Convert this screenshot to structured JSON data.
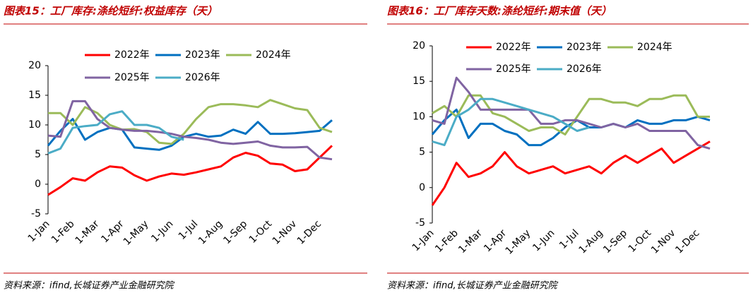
{
  "chart_data": [
    {
      "type": "line",
      "title": "图表15：工厂库存:涤纶短纤:权益库存（天）",
      "source": "资料来源：ifind,长城证券产业金融研究院",
      "categories": [
        "1-Jan",
        null,
        "1-Feb",
        null,
        "1-Mar",
        null,
        "1-Apr",
        null,
        "1-May",
        null,
        "1-Jun",
        null,
        "1-Jul",
        null,
        "1-Aug",
        null,
        "1-Sep",
        null,
        "1-Oct",
        null,
        "1-Nov",
        null,
        "1-Dec",
        null
      ],
      "ylim": [
        -5,
        20
      ],
      "yticks": [
        -5,
        0,
        5,
        10,
        15,
        20
      ],
      "series": [
        {
          "name": "2022年",
          "color": "#ff0000",
          "values": [
            -1.8,
            -0.5,
            1.0,
            0.6,
            2.0,
            3.0,
            2.8,
            1.5,
            0.6,
            1.3,
            1.8,
            1.6,
            2.0,
            2.5,
            3.0,
            4.5,
            5.3,
            4.8,
            3.5,
            3.3,
            2.2,
            2.5,
            4.5,
            6.5
          ]
        },
        {
          "name": "2023年",
          "color": "#0070c0",
          "values": [
            6.5,
            9.0,
            11.0,
            7.5,
            8.8,
            9.5,
            9.2,
            6.2,
            6.0,
            5.8,
            6.5,
            8.0,
            8.5,
            8.0,
            8.2,
            9.2,
            8.5,
            10.5,
            8.5,
            8.5,
            8.6,
            8.8,
            9.0,
            10.8
          ]
        },
        {
          "name": "2024年",
          "color": "#9bbb59",
          "values": [
            12.0,
            12.0,
            10.0,
            13.0,
            12.0,
            10.0,
            9.2,
            9.3,
            8.8,
            7.0,
            6.8,
            8.5,
            11.0,
            13.0,
            13.5,
            13.5,
            13.3,
            13.0,
            14.2,
            13.5,
            12.8,
            12.5,
            9.5,
            8.8
          ]
        },
        {
          "name": "2025年",
          "color": "#8064a2",
          "values": [
            8.2,
            8.0,
            14.0,
            14.0,
            11.0,
            9.5,
            9.2,
            9.0,
            9.0,
            8.8,
            8.5,
            8.0,
            7.8,
            7.5,
            7.0,
            6.8,
            7.0,
            7.2,
            6.5,
            6.2,
            6.2,
            6.3,
            4.5,
            4.2
          ]
        },
        {
          "name": "2026年",
          "color": "#4bacc6",
          "values": [
            5.2,
            6.0,
            9.5,
            9.8,
            10.0,
            11.8,
            12.3,
            10.0,
            10.0,
            9.5,
            8.0,
            7.5,
            null,
            null,
            null,
            null,
            null,
            null,
            null,
            null,
            null,
            null,
            null,
            null
          ]
        }
      ]
    },
    {
      "type": "line",
      "title": "图表16：工厂库存天数:涤纶短纤:期末值（天）",
      "source": "资料来源：ifind,长城证券产业金融研究院",
      "categories": [
        "1-Jan",
        null,
        "1-Feb",
        null,
        "1-Mar",
        null,
        "1-Apr",
        null,
        "1-May",
        null,
        "1-Jun",
        null,
        "1-Jul",
        null,
        "1-Aug",
        null,
        "1-Sep",
        null,
        "1-Oct",
        null,
        "1-Nov",
        null,
        "1-Dec",
        null
      ],
      "ylim": [
        -5,
        20
      ],
      "yticks": [
        -5,
        0,
        5,
        10,
        15,
        20
      ],
      "series": [
        {
          "name": "2022年",
          "color": "#ff0000",
          "values": [
            -2.5,
            0.0,
            3.5,
            1.5,
            2.0,
            3.0,
            5.0,
            3.0,
            2.0,
            2.5,
            3.0,
            2.0,
            2.5,
            3.0,
            2.0,
            3.5,
            4.5,
            3.5,
            4.5,
            5.5,
            3.5,
            4.5,
            5.5,
            6.5
          ]
        },
        {
          "name": "2023年",
          "color": "#0070c0",
          "values": [
            7.5,
            9.5,
            11.0,
            7.0,
            9.0,
            9.0,
            8.0,
            7.5,
            6.0,
            6.0,
            7.0,
            8.5,
            9.5,
            8.5,
            8.5,
            9.0,
            8.5,
            9.5,
            9.0,
            9.0,
            9.5,
            9.5,
            10.0,
            9.5
          ]
        },
        {
          "name": "2024年",
          "color": "#9bbb59",
          "values": [
            10.5,
            11.5,
            10.0,
            13.0,
            13.0,
            10.5,
            10.0,
            9.0,
            8.0,
            8.5,
            8.5,
            7.5,
            10.0,
            12.5,
            12.5,
            12.0,
            12.0,
            11.5,
            12.5,
            12.5,
            13.0,
            13.0,
            10.0,
            10.0
          ]
        },
        {
          "name": "2025年",
          "color": "#8064a2",
          "values": [
            9.5,
            9.0,
            15.5,
            13.5,
            11.0,
            11.0,
            11.0,
            11.0,
            11.0,
            9.0,
            9.0,
            9.5,
            9.5,
            9.0,
            8.5,
            9.0,
            8.5,
            9.0,
            8.0,
            8.0,
            8.0,
            8.0,
            6.0,
            5.5
          ]
        },
        {
          "name": "2026年",
          "color": "#4bacc6",
          "values": [
            6.5,
            6.0,
            10.0,
            11.0,
            12.5,
            12.5,
            12.0,
            11.5,
            11.0,
            10.5,
            10.0,
            9.0,
            8.0,
            8.5,
            null,
            null,
            null,
            null,
            null,
            null,
            null,
            null,
            null,
            null
          ]
        }
      ]
    }
  ]
}
